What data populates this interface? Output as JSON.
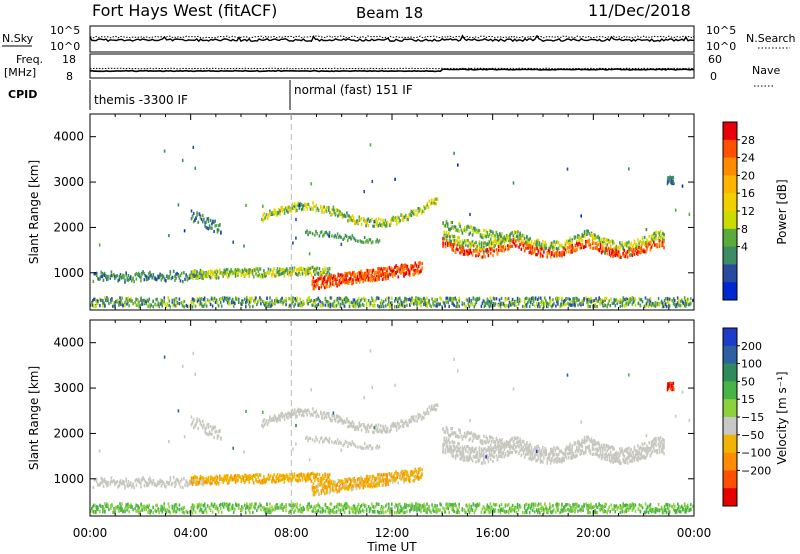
{
  "header": {
    "station": "Fort Hays West (fitACF)",
    "beam": "Beam 18",
    "date": "11/Dec/2018"
  },
  "status_panels": {
    "nsky_label": "N.Sky",
    "nsky_ticks": [
      "10^5",
      "10^0"
    ],
    "nsearch_label": "N.Search",
    "nsearch_ticks": [
      "10^5",
      "10^0"
    ],
    "freq_label_1": "Freq.",
    "freq_label_2": "[MHz]",
    "freq_ticks": [
      "18",
      "8"
    ],
    "nave_label": "Nave",
    "nave_ticks": [
      "60",
      "0"
    ],
    "cpid_label": "CPID",
    "cpid_segments": [
      "themis -3300 IF",
      "normal (fast) 151 IF"
    ],
    "line_colors": {
      "sky": "#000000",
      "search": "#000000"
    }
  },
  "chart_data": [
    {
      "type": "heatmap",
      "name": "power",
      "ylabel": "Slant Range [km]",
      "yticks": [
        1000,
        2000,
        3000,
        4000
      ],
      "ylim": [
        180,
        4500
      ],
      "xlim": [
        0,
        24
      ],
      "xticks": [
        "00:00",
        "04:00",
        "08:00",
        "12:00",
        "16:00",
        "20:00",
        "00:00"
      ],
      "colorbar": {
        "label": "Power [dB]",
        "ticks": [
          "28",
          "24",
          "20",
          "16",
          "12",
          "8",
          "4"
        ],
        "colors": [
          "#e8000b",
          "#ff5000",
          "#ff8c00",
          "#ffb400",
          "#f2d000",
          "#c8dc00",
          "#5aaa3c",
          "#3c8c64",
          "#284ba0",
          "#0028d0"
        ]
      }
    },
    {
      "type": "heatmap",
      "name": "velocity",
      "ylabel": "Slant Range [km]",
      "yticks": [
        1000,
        2000,
        3000,
        4000
      ],
      "ylim": [
        180,
        4500
      ],
      "xlim": [
        0,
        24
      ],
      "xticks": [
        "00:00",
        "04:00",
        "08:00",
        "12:00",
        "16:00",
        "20:00",
        "00:00"
      ],
      "xlabel": "Time UT",
      "colorbar": {
        "label": "Velocity [m s⁻¹]",
        "ticks": [
          "200",
          "100",
          "50",
          "15",
          "−15",
          "−50",
          "−100",
          "−200"
        ],
        "colors": [
          "#1f3cc8",
          "#2e5fa0",
          "#2e8a5a",
          "#46b446",
          "#8cd23c",
          "#c8c8c8",
          "#f0b400",
          "#ff8c00",
          "#ff5000",
          "#e60000"
        ]
      }
    }
  ],
  "colors": {
    "gray_scatter": "#c8c8c0",
    "ground_scatter": "#969690"
  }
}
